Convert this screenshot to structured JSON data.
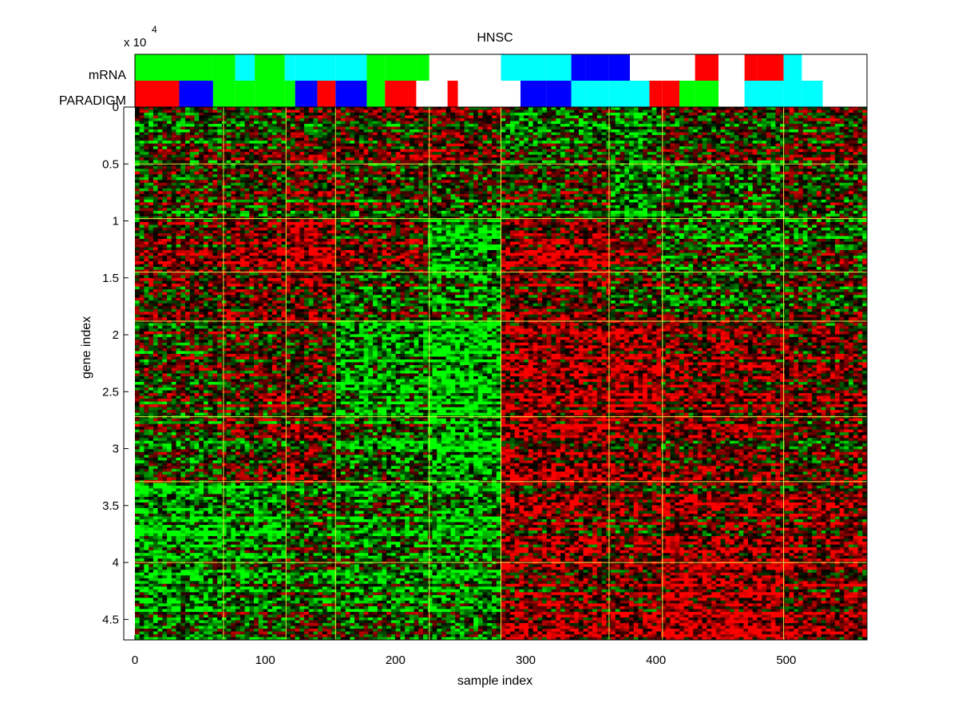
{
  "chart_data": {
    "type": "heatmap",
    "title": "HNSC",
    "xlabel": "sample index",
    "ylabel": "gene index",
    "y_exponent_label": "x 10",
    "y_exponent_power": "4",
    "xlim": [
      0,
      562
    ],
    "ylim": [
      0,
      46800
    ],
    "x_ticks": [
      0,
      100,
      200,
      300,
      400,
      500
    ],
    "x_tick_labels": [
      "0",
      "100",
      "200",
      "300",
      "400",
      "500"
    ],
    "y_ticks": [
      0,
      5000,
      10000,
      15000,
      20000,
      25000,
      30000,
      35000,
      40000,
      45000
    ],
    "y_tick_labels": [
      "0",
      "0.5",
      "1",
      "1.5",
      "2",
      "2.5",
      "3",
      "3.5",
      "4",
      "4.5"
    ],
    "colormap": {
      "low": "#00ff00",
      "mid": "#000000",
      "high": "#ff0000"
    },
    "sample_cluster_boundaries": [
      68,
      116,
      154,
      226,
      281,
      364,
      405,
      498
    ],
    "gene_cluster_boundaries": [
      5000,
      9800,
      14500,
      18800,
      27200,
      32900,
      40000
    ],
    "annotation_tracks": [
      {
        "name": "mRNA",
        "segments": [
          {
            "start": 0,
            "end": 34,
            "color": "#00ff00"
          },
          {
            "start": 34,
            "end": 60,
            "color": "#00ff00"
          },
          {
            "start": 60,
            "end": 77,
            "color": "#00ff00"
          },
          {
            "start": 77,
            "end": 92,
            "color": "#00ffff"
          },
          {
            "start": 92,
            "end": 115,
            "color": "#00ff00"
          },
          {
            "start": 115,
            "end": 123,
            "color": "#00ffff"
          },
          {
            "start": 123,
            "end": 140,
            "color": "#00ffff"
          },
          {
            "start": 140,
            "end": 154,
            "color": "#00ffff"
          },
          {
            "start": 154,
            "end": 178,
            "color": "#00ffff"
          },
          {
            "start": 178,
            "end": 192,
            "color": "#00ff00"
          },
          {
            "start": 192,
            "end": 216,
            "color": "#00ff00"
          },
          {
            "start": 216,
            "end": 226,
            "color": "#00ff00"
          },
          {
            "start": 226,
            "end": 240,
            "color": "#ffffff"
          },
          {
            "start": 240,
            "end": 248,
            "color": "#ffffff"
          },
          {
            "start": 248,
            "end": 272,
            "color": "#ffffff"
          },
          {
            "start": 272,
            "end": 281,
            "color": "#ffffff"
          },
          {
            "start": 281,
            "end": 296,
            "color": "#00ffff"
          },
          {
            "start": 296,
            "end": 316,
            "color": "#00ffff"
          },
          {
            "start": 316,
            "end": 335,
            "color": "#00ffff"
          },
          {
            "start": 335,
            "end": 346,
            "color": "#0000ff"
          },
          {
            "start": 346,
            "end": 364,
            "color": "#0000ff"
          },
          {
            "start": 364,
            "end": 380,
            "color": "#0000ff"
          },
          {
            "start": 380,
            "end": 395,
            "color": "#ffffff"
          },
          {
            "start": 395,
            "end": 405,
            "color": "#ffffff"
          },
          {
            "start": 405,
            "end": 418,
            "color": "#ffffff"
          },
          {
            "start": 418,
            "end": 430,
            "color": "#ffffff"
          },
          {
            "start": 430,
            "end": 448,
            "color": "#ff0000"
          },
          {
            "start": 448,
            "end": 468,
            "color": "#ffffff"
          },
          {
            "start": 468,
            "end": 478,
            "color": "#ff0000"
          },
          {
            "start": 478,
            "end": 498,
            "color": "#ff0000"
          },
          {
            "start": 498,
            "end": 512,
            "color": "#00ffff"
          },
          {
            "start": 512,
            "end": 528,
            "color": "#ffffff"
          },
          {
            "start": 528,
            "end": 548,
            "color": "#ffffff"
          },
          {
            "start": 548,
            "end": 562,
            "color": "#ffffff"
          }
        ]
      },
      {
        "name": "PARADIGM",
        "segments": [
          {
            "start": 0,
            "end": 34,
            "color": "#ff0000"
          },
          {
            "start": 34,
            "end": 60,
            "color": "#0000ff"
          },
          {
            "start": 60,
            "end": 77,
            "color": "#00ff00"
          },
          {
            "start": 77,
            "end": 92,
            "color": "#00ff00"
          },
          {
            "start": 92,
            "end": 115,
            "color": "#00ff00"
          },
          {
            "start": 115,
            "end": 123,
            "color": "#00ff00"
          },
          {
            "start": 123,
            "end": 140,
            "color": "#0000ff"
          },
          {
            "start": 140,
            "end": 154,
            "color": "#ff0000"
          },
          {
            "start": 154,
            "end": 178,
            "color": "#0000ff"
          },
          {
            "start": 178,
            "end": 192,
            "color": "#00ff00"
          },
          {
            "start": 192,
            "end": 216,
            "color": "#ff0000"
          },
          {
            "start": 216,
            "end": 226,
            "color": "#ffffff"
          },
          {
            "start": 226,
            "end": 240,
            "color": "#ffffff"
          },
          {
            "start": 240,
            "end": 248,
            "color": "#ff0000"
          },
          {
            "start": 248,
            "end": 272,
            "color": "#ffffff"
          },
          {
            "start": 272,
            "end": 281,
            "color": "#ffffff"
          },
          {
            "start": 281,
            "end": 296,
            "color": "#ffffff"
          },
          {
            "start": 296,
            "end": 316,
            "color": "#0000ff"
          },
          {
            "start": 316,
            "end": 335,
            "color": "#0000ff"
          },
          {
            "start": 335,
            "end": 346,
            "color": "#00ffff"
          },
          {
            "start": 346,
            "end": 364,
            "color": "#00ffff"
          },
          {
            "start": 364,
            "end": 380,
            "color": "#00ffff"
          },
          {
            "start": 380,
            "end": 395,
            "color": "#00ffff"
          },
          {
            "start": 395,
            "end": 405,
            "color": "#ff0000"
          },
          {
            "start": 405,
            "end": 418,
            "color": "#ff0000"
          },
          {
            "start": 418,
            "end": 430,
            "color": "#00ff00"
          },
          {
            "start": 430,
            "end": 448,
            "color": "#00ff00"
          },
          {
            "start": 448,
            "end": 468,
            "color": "#ffffff"
          },
          {
            "start": 468,
            "end": 478,
            "color": "#00ffff"
          },
          {
            "start": 478,
            "end": 498,
            "color": "#00ffff"
          },
          {
            "start": 498,
            "end": 512,
            "color": "#00ffff"
          },
          {
            "start": 512,
            "end": 528,
            "color": "#00ffff"
          },
          {
            "start": 528,
            "end": 548,
            "color": "#ffffff"
          },
          {
            "start": 548,
            "end": 562,
            "color": "#ffffff"
          }
        ]
      }
    ],
    "block_means": [
      [
        -0.1,
        0.0,
        0.1,
        0.1,
        0.2,
        -0.2,
        -0.3,
        0.0,
        0.1
      ],
      [
        0.0,
        0.0,
        0.1,
        0.0,
        -0.1,
        0.0,
        -0.4,
        -0.2,
        0.0
      ],
      [
        0.2,
        0.3,
        0.5,
        0.2,
        -0.5,
        0.4,
        0.1,
        -0.2,
        -0.1
      ],
      [
        0.1,
        0.2,
        0.2,
        -0.1,
        -0.3,
        0.2,
        0.0,
        -0.1,
        0.0
      ],
      [
        0.0,
        0.1,
        0.1,
        -0.4,
        -0.6,
        0.4,
        0.5,
        0.3,
        0.2
      ],
      [
        -0.1,
        0.1,
        0.2,
        -0.2,
        -0.5,
        0.4,
        0.3,
        0.2,
        0.1
      ],
      [
        -0.5,
        -0.4,
        -0.1,
        -0.3,
        -0.4,
        0.3,
        0.2,
        0.3,
        0.3
      ],
      [
        -0.3,
        -0.2,
        -0.1,
        -0.2,
        -0.3,
        0.3,
        0.3,
        0.5,
        0.3
      ]
    ]
  }
}
